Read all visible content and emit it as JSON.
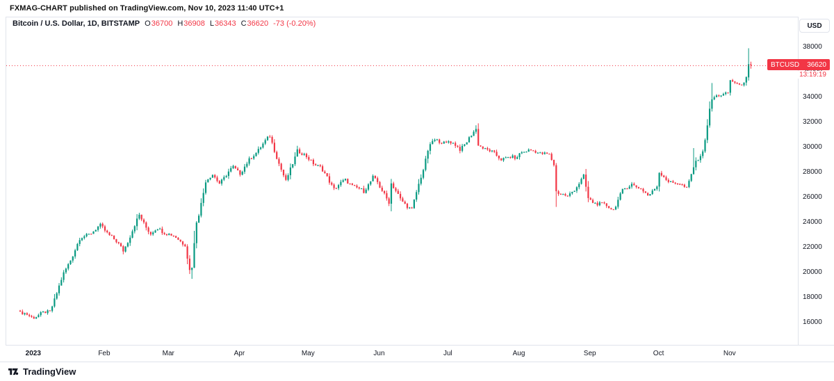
{
  "header": {
    "published_note": "FXMAG-CHART published on TradingView.com, Nov 10, 2023 11:40 UTC+1"
  },
  "toolbar": {
    "currency_label": "USD"
  },
  "legend": {
    "symbol_title": "Bitcoin / U.S. Dollar, 1D, BITSTAMP",
    "ohlc": [
      {
        "label": "O",
        "value": "36700"
      },
      {
        "label": "H",
        "value": "36908"
      },
      {
        "label": "L",
        "value": "36343"
      },
      {
        "label": "C",
        "value": "36620"
      }
    ],
    "change": "-73 (-0.20%)"
  },
  "price_label": {
    "symbol": "BTCUSD",
    "price": "36620",
    "countdown": "13:19:19"
  },
  "price_scale": {
    "ticks": [
      38000,
      36000,
      34000,
      32000,
      30000,
      28000,
      26000,
      24000,
      22000,
      20000,
      18000,
      16000
    ]
  },
  "time_scale": {
    "ticks": [
      {
        "label": "2023",
        "i": 6,
        "bold": true
      },
      {
        "label": "Feb",
        "i": 37
      },
      {
        "label": "Mar",
        "i": 65
      },
      {
        "label": "Apr",
        "i": 96
      },
      {
        "label": "May",
        "i": 126
      },
      {
        "label": "Jun",
        "i": 157
      },
      {
        "label": "Jul",
        "i": 187
      },
      {
        "label": "Aug",
        "i": 218
      },
      {
        "label": "Sep",
        "i": 249
      },
      {
        "label": "Oct",
        "i": 279
      },
      {
        "label": "Nov",
        "i": 310
      }
    ]
  },
  "footer": {
    "brand": "TradingView"
  },
  "colors": {
    "up": "#089981",
    "down": "#F23645",
    "accent_red": "#F23645",
    "text": "#131722",
    "border": "#e0e3eb",
    "badge_bg": "#F23645",
    "badge_text": "#ffffff"
  },
  "chart_data": {
    "type": "candlestick",
    "title": "Bitcoin / U.S. Dollar",
    "pair": "BTCUSD",
    "exchange": "BITSTAMP",
    "interval": "1D",
    "x_range": [
      "2022-12-26",
      "2023-11-10"
    ],
    "y_range": [
      15600,
      38800
    ],
    "grid": false,
    "legend_position": "top-left",
    "current": {
      "open": 36700,
      "high": 36908,
      "low": 36343,
      "close": 36620,
      "change": -73,
      "change_pct": -0.2
    },
    "num_candles": 320,
    "anchors_close": [
      [
        0,
        16830
      ],
      [
        5,
        16530
      ],
      [
        6,
        16540
      ],
      [
        13,
        16950
      ],
      [
        19,
        19930
      ],
      [
        26,
        22700
      ],
      [
        35,
        23750
      ],
      [
        40,
        22950
      ],
      [
        45,
        21800
      ],
      [
        52,
        24600
      ],
      [
        57,
        23160
      ],
      [
        60,
        23550
      ],
      [
        65,
        23150
      ],
      [
        72,
        22350
      ],
      [
        74,
        20200
      ],
      [
        75,
        20450
      ],
      [
        77,
        24100
      ],
      [
        78,
        24750
      ],
      [
        81,
        27400
      ],
      [
        84,
        27800
      ],
      [
        87,
        27250
      ],
      [
        93,
        28450
      ],
      [
        96,
        28050
      ],
      [
        105,
        30150
      ],
      [
        109,
        30900
      ],
      [
        114,
        28300
      ],
      [
        116,
        27270
      ],
      [
        121,
        29850
      ],
      [
        125,
        29250
      ],
      [
        131,
        28450
      ],
      [
        137,
        26800
      ],
      [
        142,
        27400
      ],
      [
        150,
        26480
      ],
      [
        154,
        27740
      ],
      [
        156,
        27220
      ],
      [
        157,
        26820
      ],
      [
        161,
        25750
      ],
      [
        162,
        27240
      ],
      [
        166,
        25850
      ],
      [
        171,
        25125
      ],
      [
        176,
        28320
      ],
      [
        178,
        29900
      ],
      [
        180,
        30550
      ],
      [
        186,
        30470
      ],
      [
        187,
        30590
      ],
      [
        192,
        29900
      ],
      [
        199,
        31450
      ],
      [
        200,
        30300
      ],
      [
        204,
        29850
      ],
      [
        210,
        29180
      ],
      [
        217,
        29230
      ],
      [
        218,
        29700
      ],
      [
        225,
        29770
      ],
      [
        231,
        29400
      ],
      [
        233,
        28700
      ],
      [
        234,
        26600
      ],
      [
        239,
        26050
      ],
      [
        246,
        27700
      ],
      [
        248,
        25935
      ],
      [
        249,
        25800
      ],
      [
        259,
        25150
      ],
      [
        263,
        26550
      ],
      [
        267,
        27200
      ],
      [
        274,
        26250
      ],
      [
        278,
        26950
      ],
      [
        279,
        27970
      ],
      [
        283,
        27400
      ],
      [
        291,
        26850
      ],
      [
        294,
        28500
      ],
      [
        298,
        29650
      ],
      [
        301,
        33100
      ],
      [
        302,
        33900
      ],
      [
        309,
        34500
      ],
      [
        310,
        35400
      ],
      [
        314,
        34950
      ],
      [
        317,
        35650
      ],
      [
        318,
        36700
      ],
      [
        319,
        36620
      ]
    ],
    "overrides": [
      {
        "i": 75,
        "low": 19550
      },
      {
        "i": 109,
        "high": 31050
      },
      {
        "i": 199,
        "high": 31820
      },
      {
        "i": 234,
        "low": 25300
      },
      {
        "i": 294,
        "high": 30000
      },
      {
        "i": 302,
        "high": 35200
      },
      {
        "i": 318,
        "open": 35650,
        "close": 36700,
        "high": 37980
      },
      {
        "i": 319,
        "open": 36700,
        "high": 36908,
        "low": 36343,
        "close": 36620
      }
    ]
  }
}
